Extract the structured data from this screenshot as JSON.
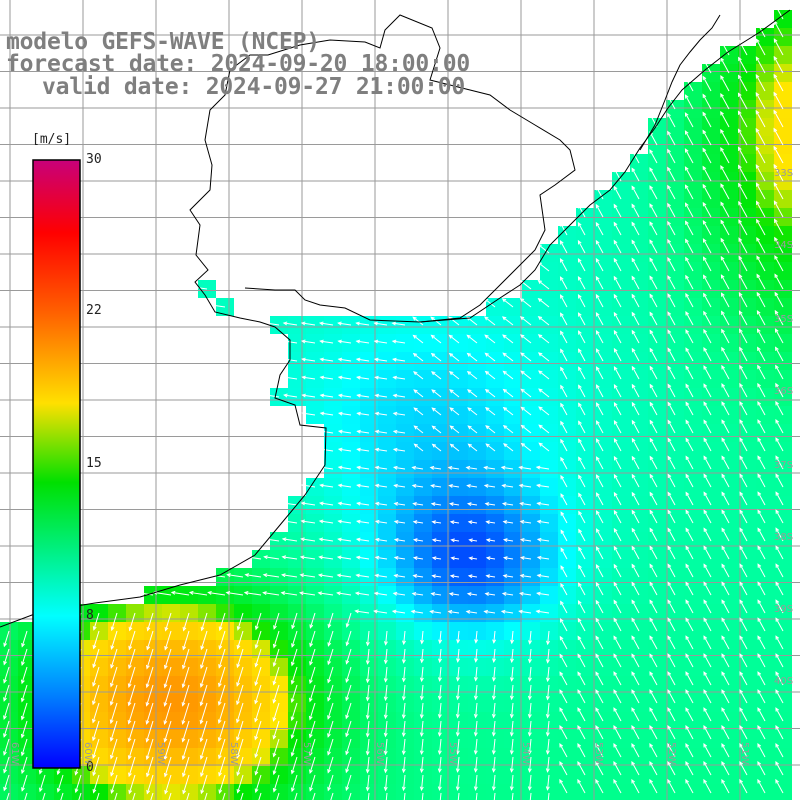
{
  "title": {
    "line1": "modelo GEFS-WAVE (NCEP)",
    "line2": "forecast date: 2024-09-20 18:00:00",
    "line3": "valid date: 2024-09-27 21:00:00"
  },
  "colorbar": {
    "unit": "[m/s]",
    "ticks": [
      "30",
      "22",
      "15",
      "8",
      "0"
    ],
    "tick_values": [
      30,
      22,
      15,
      8,
      0
    ],
    "colors": [
      "#cc0088",
      "#ff0000",
      "#ff8000",
      "#ffff00",
      "#00ff00",
      "#00ffff",
      "#0060ff",
      "#0000ff"
    ]
  },
  "lat_labels": [
    "33S",
    "34S",
    "35S",
    "36S",
    "37S",
    "38S",
    "39S",
    "40S"
  ],
  "lon_labels": [
    "61W",
    "60W",
    "59W",
    "58W",
    "57W",
    "56W",
    "55W",
    "54W",
    "53W",
    "52W",
    "51W"
  ],
  "colors": {
    "land": "#ffffff",
    "coast": "#000000",
    "grid": "#9a9a9a",
    "arrow": "#ffffff",
    "title": "#7f7f7f"
  }
}
